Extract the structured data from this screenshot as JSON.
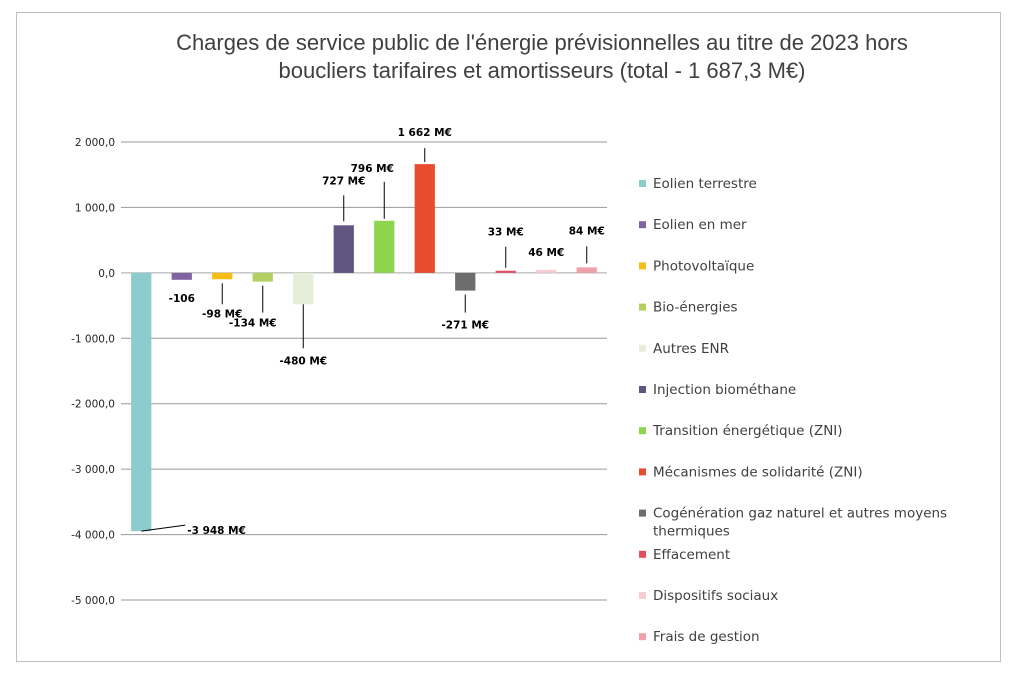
{
  "chart_data": {
    "type": "bar",
    "title": [
      "Charges de service public de l'énergie prévisionnelles au titre de 2023 hors",
      "boucliers tarifaires et amortisseurs (total - 1 687,3 M€)"
    ],
    "ylim": [
      -5000,
      2000
    ],
    "yticks": [
      2000,
      1000,
      0,
      -1000,
      -2000,
      -3000,
      -4000,
      -5000
    ],
    "ytick_labels": [
      "2 000,0",
      "1 000,0",
      "0,0",
      "-1 000,0",
      "-2 000,0",
      "-3 000,0",
      "-4 000,0",
      "-5 000,0"
    ],
    "grid": true,
    "legend_position": "right",
    "categories": [
      "Eolien terrestre",
      "Eolien en mer",
      "Photovoltaïque",
      "Bio-énergies",
      "Autres ENR",
      "Injection biométhane",
      "Transition énergétique (ZNI)",
      "Mécanismes de solidarité (ZNI)",
      "Cogénération gaz naturel et autres moyens thermiques",
      "Effacement",
      "Dispositifs sociaux",
      "Frais de gestion"
    ],
    "values": [
      -3948,
      -106,
      -98,
      -134,
      -480,
      727,
      796,
      1662,
      -271,
      33,
      46,
      84
    ],
    "data_labels": [
      "-3 948 M€",
      "-106",
      "-98 M€",
      "-134 M€",
      "-480 M€",
      "727 M€",
      "796 M€",
      "1 662 M€",
      "-271 M€",
      "33 M€",
      "46 M€",
      "84 M€"
    ],
    "colors": [
      "#8ccbce",
      "#8064a2",
      "#f5bd16",
      "#b3cf62",
      "#e6edd8",
      "#615582",
      "#8dd54c",
      "#e84c2e",
      "#6d6d6d",
      "#e05060",
      "#f7cdd4",
      "#f0a0a8"
    ]
  }
}
